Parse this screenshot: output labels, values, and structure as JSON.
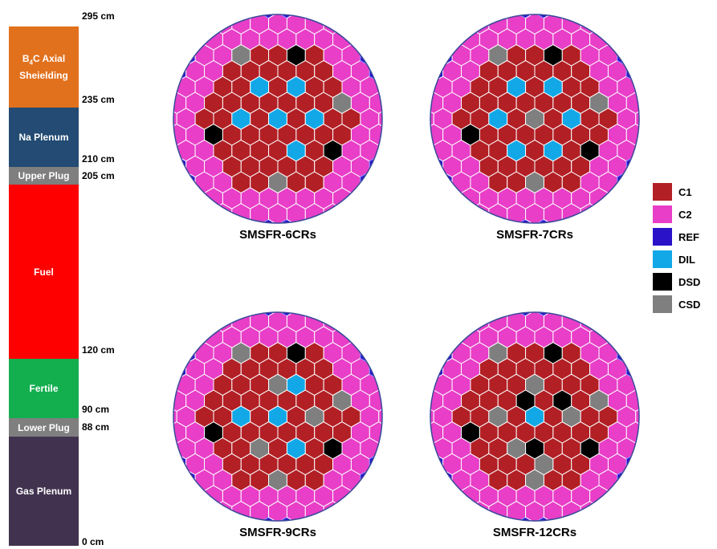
{
  "axial": {
    "segments": [
      {
        "key": "b4c",
        "label_main": "B",
        "label_sub": "4",
        "label_rest": "C Axial Sheielding",
        "color": "#E2711D"
      },
      {
        "key": "plenum",
        "label": "Na Plenum",
        "color": "#234B73"
      },
      {
        "key": "upper_plug",
        "label": "Upper Plug",
        "color": "#7F7F7F"
      },
      {
        "key": "fuel",
        "label": "Fuel",
        "color": "#FF0000"
      },
      {
        "key": "fertile",
        "label": "Fertile",
        "color": "#13AF4F"
      },
      {
        "key": "lower_plug",
        "label": "Lower Plug",
        "color": "#7F7F7F"
      },
      {
        "key": "gas_plenum",
        "label": "Gas Plenum",
        "color": "#41334F"
      }
    ],
    "heights": [
      "295 cm",
      "235 cm",
      "210 cm",
      "205 cm",
      "120 cm",
      "90 cm",
      "88 cm",
      "0 cm"
    ]
  },
  "cores": [
    {
      "title": "SMSFR-6CRs"
    },
    {
      "title": "SMSFR-7CRs"
    },
    {
      "title": "SMSFR-9CRs"
    },
    {
      "title": "SMSFR-12CRs"
    }
  ],
  "legend": [
    {
      "label": "C1",
      "color": "#B22025"
    },
    {
      "label": "C2",
      "color": "#E83EC8"
    },
    {
      "label": "REF",
      "color": "#2A12C8"
    },
    {
      "label": "DIL",
      "color": "#12A8E8"
    },
    {
      "label": "DSD",
      "color": "#000000"
    },
    {
      "label": "CSD",
      "color": "#7F7F7F"
    }
  ]
}
